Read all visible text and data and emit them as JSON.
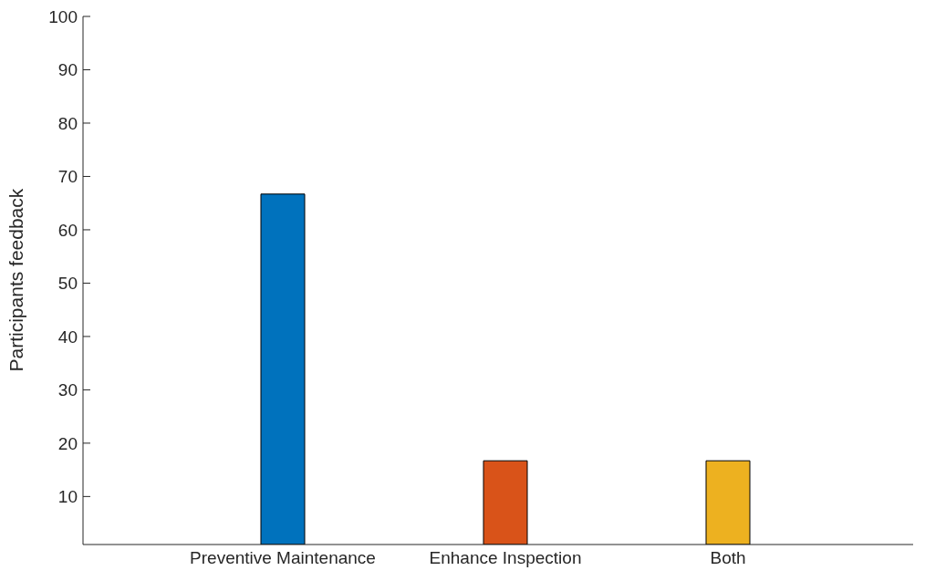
{
  "chart_data": {
    "type": "bar",
    "ylabel": "Participants feedback",
    "categories": [
      "Preventive Maintenance",
      "Enhance Inspection",
      "Both"
    ],
    "values": [
      66.7,
      16.7,
      16.7
    ],
    "colors": [
      "#0072bd",
      "#d95319",
      "#edb120"
    ],
    "ylim": [
      1,
      100
    ],
    "yticks": [
      10,
      20,
      30,
      40,
      50,
      60,
      70,
      80,
      90,
      100
    ],
    "grid": false,
    "legend": false
  }
}
